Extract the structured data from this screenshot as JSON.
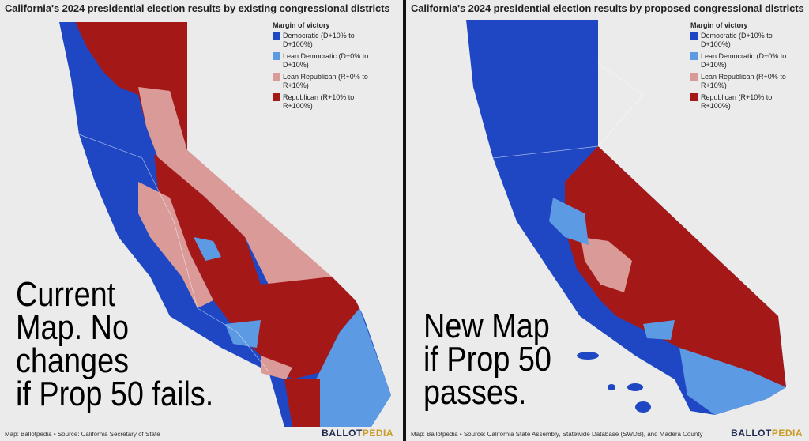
{
  "panels": [
    {
      "title": "California's 2024 presidential election results by existing congressional districts",
      "legend": {
        "title": "Margin of victory",
        "items": [
          "Democratic (D+10% to D+100%)",
          "Lean Democratic (D+0% to D+10%)",
          "Lean Republican (R+0% to R+10%)",
          "Republican (R+10% to R+100%)"
        ]
      },
      "overlay": [
        "Current",
        "Map. No",
        "changes",
        "if Prop 50 fails."
      ],
      "source": "Map: Ballotpedia • Source: California Secretary of State",
      "logo": [
        "BALLOT",
        "PEDIA"
      ]
    },
    {
      "title": "California's 2024 presidential election results by proposed congressional districts",
      "legend": {
        "title": "Margin of victory",
        "items": [
          "Democratic (D+10% to D+100%)",
          "Lean Democratic (D+0% to D+10%)",
          "Lean Republican (R+0% to R+10%)",
          "Republican (R+10% to R+100%)"
        ]
      },
      "overlay": [
        "New Map",
        "if Prop 50",
        "passes."
      ],
      "source": "Map: Ballotpedia • Source: California State Assembly, Statewide Database (SWDB), and Madera County",
      "logo": [
        "BALLOT",
        "PEDIA"
      ]
    }
  ]
}
